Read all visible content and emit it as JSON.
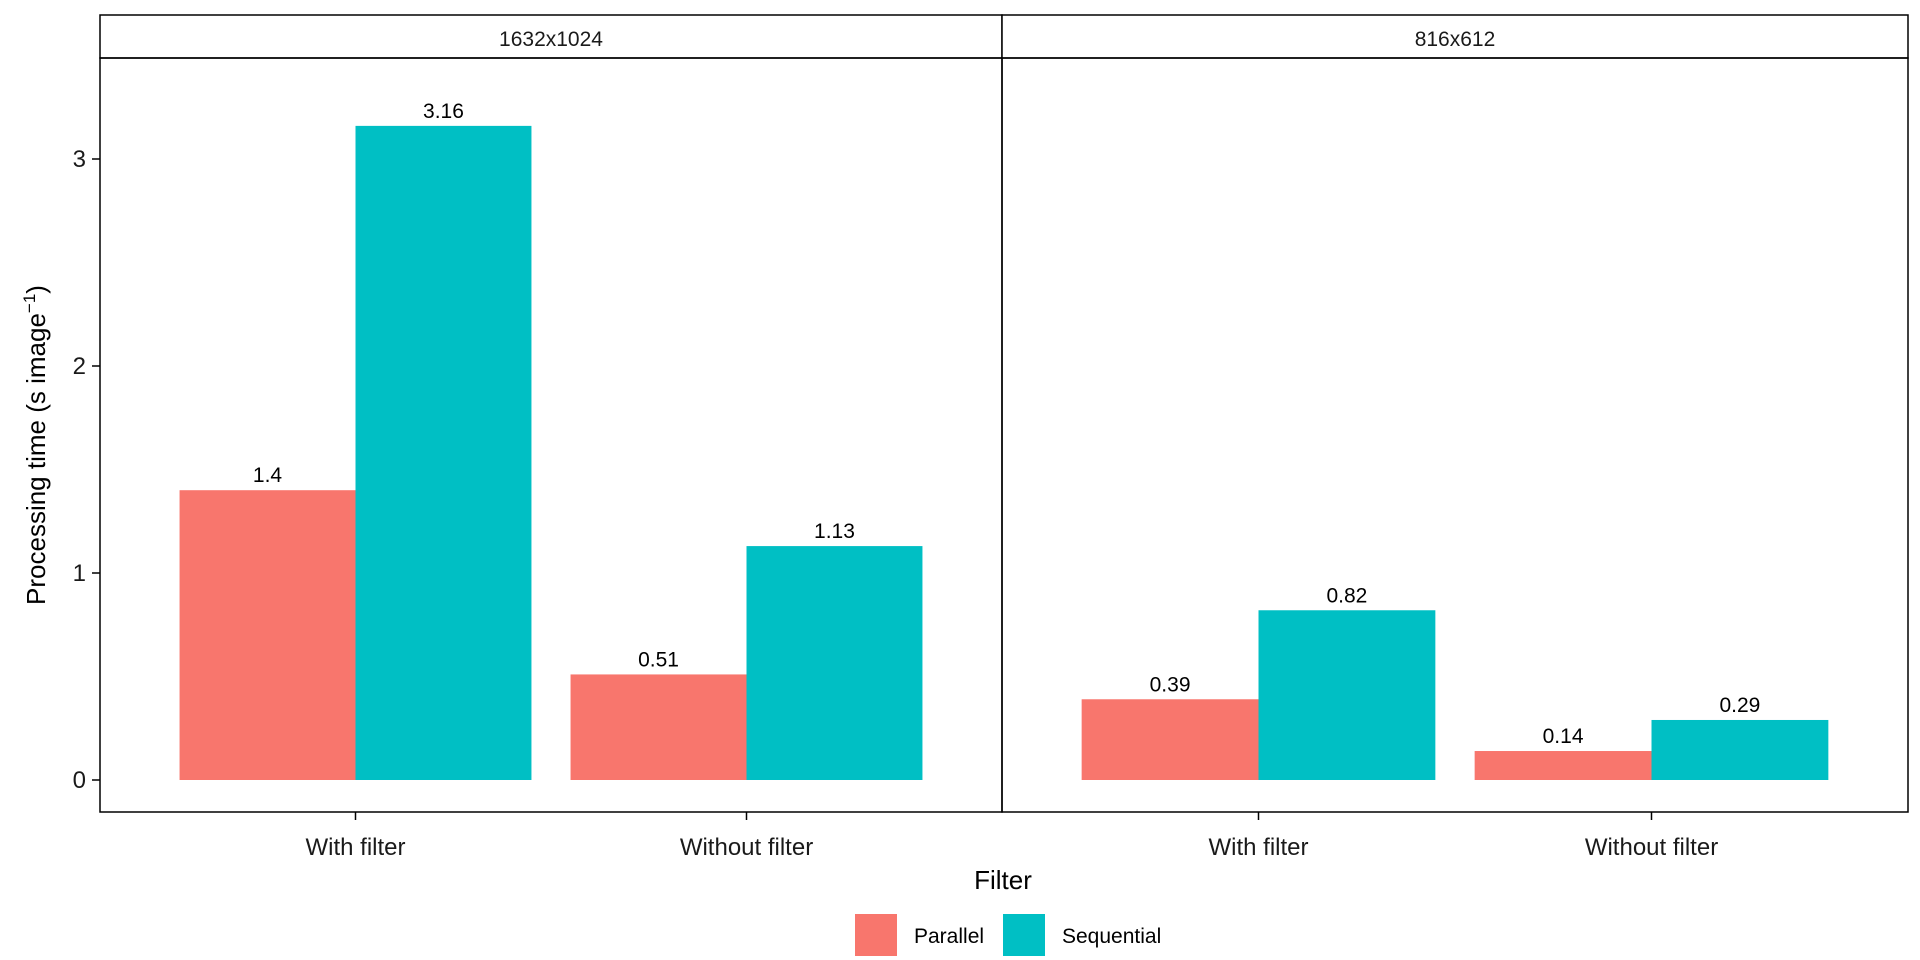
{
  "chart_data": {
    "type": "bar",
    "xlabel": "Filter",
    "ylabel": "Processing time (s image",
    "ylabel_superscript": "−1",
    "ylabel_close": ")",
    "ylim": [
      0,
      3.5
    ],
    "yticks": [
      0,
      1,
      2,
      3
    ],
    "categories": [
      "With filter",
      "Without filter"
    ],
    "panels": [
      {
        "title": "1632x1024",
        "series": [
          {
            "name": "Parallel",
            "values": [
              1.4,
              0.51
            ],
            "labels": [
              "1.4",
              "0.51"
            ]
          },
          {
            "name": "Sequential",
            "values": [
              3.16,
              1.13
            ],
            "labels": [
              "3.16",
              "1.13"
            ]
          }
        ]
      },
      {
        "title": "816x612",
        "series": [
          {
            "name": "Parallel",
            "values": [
              0.39,
              0.14
            ],
            "labels": [
              "0.39",
              "0.14"
            ]
          },
          {
            "name": "Sequential",
            "values": [
              0.82,
              0.29
            ],
            "labels": [
              "0.82",
              "0.29"
            ]
          }
        ]
      }
    ],
    "legend": {
      "position": "bottom",
      "entries": [
        {
          "name": "Parallel",
          "color": "#F8766D"
        },
        {
          "name": "Sequential",
          "color": "#00BFC4"
        }
      ]
    },
    "grid": false
  }
}
